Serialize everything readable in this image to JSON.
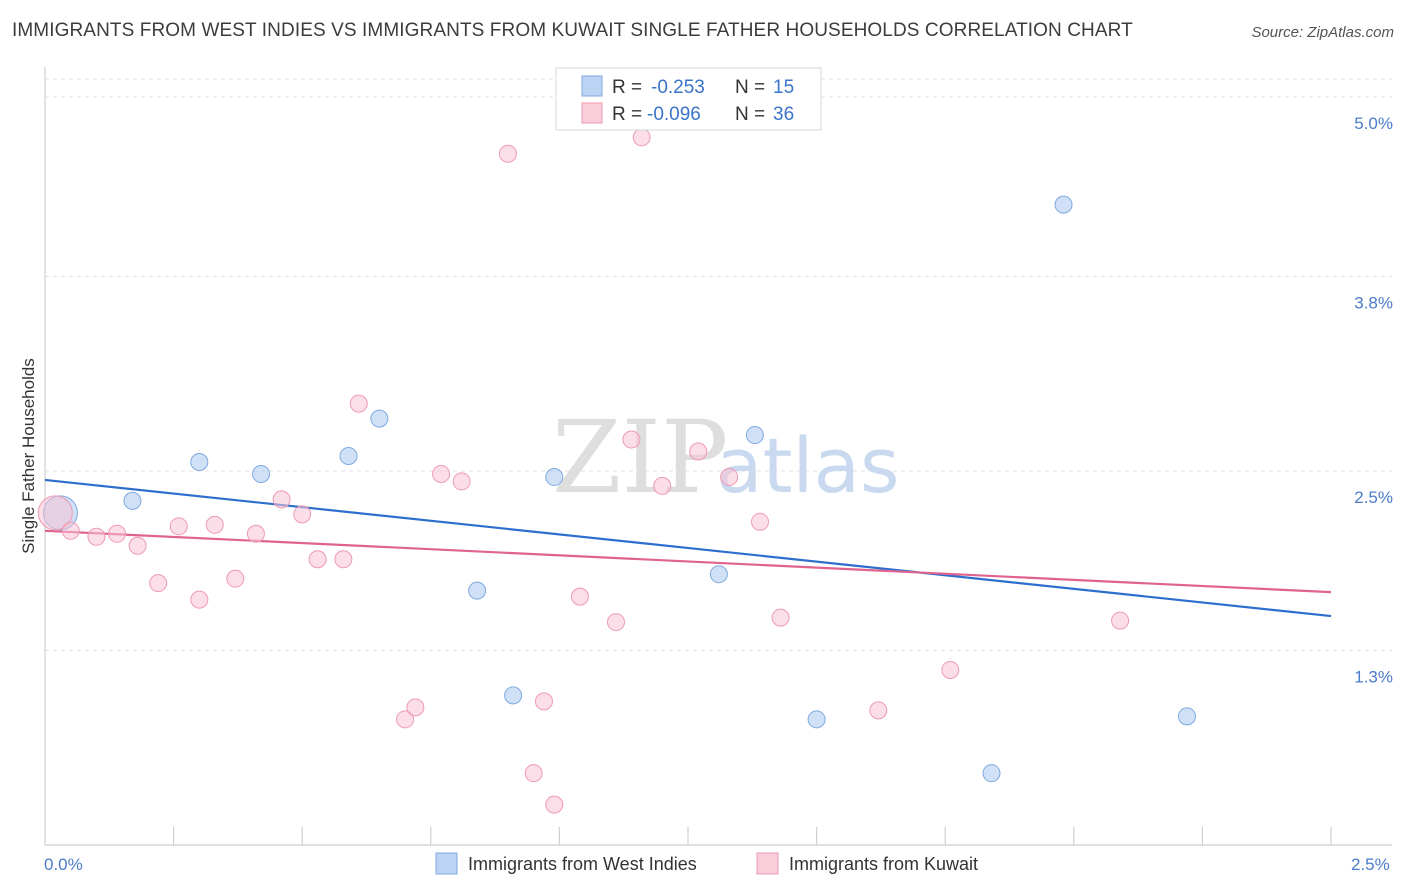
{
  "title": "IMMIGRANTS FROM WEST INDIES VS IMMIGRANTS FROM KUWAIT SINGLE FATHER HOUSEHOLDS CORRELATION CHART",
  "source": "Source: ZipAtlas.com",
  "watermark": {
    "zip": "ZIP",
    "atlas": "atlas"
  },
  "legend": {
    "r_label": "R =",
    "n_label": "N =",
    "series1": {
      "r": "-0.253",
      "n": "15"
    },
    "series2": {
      "r": "-0.096",
      "n": "36"
    }
  },
  "chart_data": {
    "type": "scatter",
    "title": "IMMIGRANTS FROM WEST INDIES VS IMMIGRANTS FROM KUWAIT SINGLE FATHER HOUSEHOLDS CORRELATION CHART",
    "xlabel": "",
    "ylabel": "Single Father Households",
    "xlim": [
      0.0,
      2.5
    ],
    "ylim": [
      0.0,
      5.2
    ],
    "x_tick_labels": [
      "0.0%",
      "2.5%"
    ],
    "y_ticks": [
      1.3,
      2.5,
      3.8,
      5.0
    ],
    "y_tick_labels": [
      "1.3%",
      "2.5%",
      "3.8%",
      "5.0%"
    ],
    "series": [
      {
        "name": "Immigrants from West Indies",
        "color": "#a9c8f0",
        "stroke": "#7fa9e0",
        "line_color": "#2e6fce",
        "trend": {
          "x": [
            0.0,
            2.5
          ],
          "y": [
            2.44,
            1.53
          ]
        },
        "points": [
          {
            "x": 0.03,
            "y": 2.22,
            "big": true
          },
          {
            "x": 0.17,
            "y": 2.3
          },
          {
            "x": 0.3,
            "y": 2.56
          },
          {
            "x": 0.42,
            "y": 2.48
          },
          {
            "x": 0.59,
            "y": 2.6
          },
          {
            "x": 0.65,
            "y": 2.85
          },
          {
            "x": 0.84,
            "y": 1.7
          },
          {
            "x": 0.91,
            "y": 1.0
          },
          {
            "x": 0.99,
            "y": 2.46
          },
          {
            "x": 1.31,
            "y": 1.81
          },
          {
            "x": 1.38,
            "y": 2.74
          },
          {
            "x": 1.5,
            "y": 0.84
          },
          {
            "x": 1.84,
            "y": 0.48
          },
          {
            "x": 1.98,
            "y": 4.28
          },
          {
            "x": 2.22,
            "y": 0.86
          }
        ]
      },
      {
        "name": "Immigrants from Kuwait",
        "color": "#f7c3d3",
        "stroke": "#ee9ab4",
        "line_color": "#e0638f",
        "trend": {
          "x": [
            0.0,
            2.5
          ],
          "y": [
            2.1,
            1.69
          ]
        },
        "points": [
          {
            "x": 0.02,
            "y": 2.22,
            "big": true
          },
          {
            "x": 0.05,
            "y": 2.1
          },
          {
            "x": 0.1,
            "y": 2.06
          },
          {
            "x": 0.14,
            "y": 2.08
          },
          {
            "x": 0.18,
            "y": 2.0
          },
          {
            "x": 0.22,
            "y": 1.75
          },
          {
            "x": 0.26,
            "y": 2.13
          },
          {
            "x": 0.3,
            "y": 1.64
          },
          {
            "x": 0.33,
            "y": 2.14
          },
          {
            "x": 0.37,
            "y": 1.78
          },
          {
            "x": 0.41,
            "y": 2.08
          },
          {
            "x": 0.46,
            "y": 2.31
          },
          {
            "x": 0.5,
            "y": 2.21
          },
          {
            "x": 0.53,
            "y": 1.91
          },
          {
            "x": 0.58,
            "y": 1.91
          },
          {
            "x": 0.61,
            "y": 2.95
          },
          {
            "x": 0.7,
            "y": 0.84
          },
          {
            "x": 0.72,
            "y": 0.92
          },
          {
            "x": 0.77,
            "y": 2.48
          },
          {
            "x": 0.81,
            "y": 2.43
          },
          {
            "x": 0.9,
            "y": 4.62
          },
          {
            "x": 0.95,
            "y": 0.48
          },
          {
            "x": 0.97,
            "y": 0.96
          },
          {
            "x": 0.99,
            "y": 0.27
          },
          {
            "x": 1.04,
            "y": 1.66
          },
          {
            "x": 1.11,
            "y": 1.49
          },
          {
            "x": 1.14,
            "y": 2.71
          },
          {
            "x": 1.16,
            "y": 4.73
          },
          {
            "x": 1.2,
            "y": 2.4
          },
          {
            "x": 1.27,
            "y": 2.63
          },
          {
            "x": 1.33,
            "y": 2.46
          },
          {
            "x": 1.39,
            "y": 2.16
          },
          {
            "x": 1.43,
            "y": 1.52
          },
          {
            "x": 1.62,
            "y": 0.9
          },
          {
            "x": 1.76,
            "y": 1.17
          },
          {
            "x": 2.09,
            "y": 1.5
          }
        ]
      }
    ]
  }
}
